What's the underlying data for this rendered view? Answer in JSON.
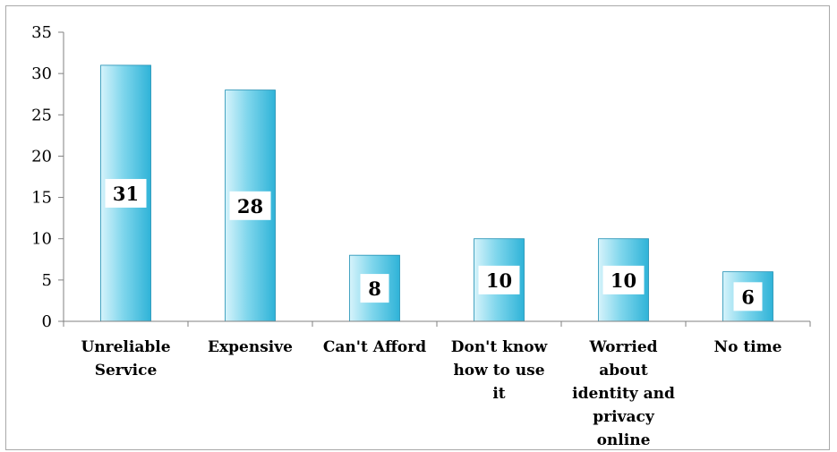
{
  "chart_data": {
    "type": "bar",
    "categories": [
      [
        "Unreliable",
        "Service"
      ],
      [
        "Expensive"
      ],
      [
        "Can't Afford"
      ],
      [
        "Don't know",
        "how to use",
        "it"
      ],
      [
        "Worried",
        "about",
        "identity and",
        "privacy",
        "online"
      ],
      [
        "No time"
      ]
    ],
    "values": [
      31,
      28,
      8,
      10,
      10,
      6
    ],
    "data_labels": [
      "31",
      "28",
      "8",
      "10",
      "10",
      "6"
    ],
    "yticks": [
      0,
      5,
      10,
      15,
      20,
      25,
      30,
      35
    ],
    "ylim": [
      0,
      35
    ],
    "title": "",
    "xlabel": "",
    "ylabel": "",
    "grid": false,
    "legend": "none",
    "bar_color_light": "#d6f3fb",
    "bar_color_mid": "#7fd6ec",
    "bar_color_dark": "#2fb3d8",
    "bar_edge_color": "#1e8fb3"
  }
}
